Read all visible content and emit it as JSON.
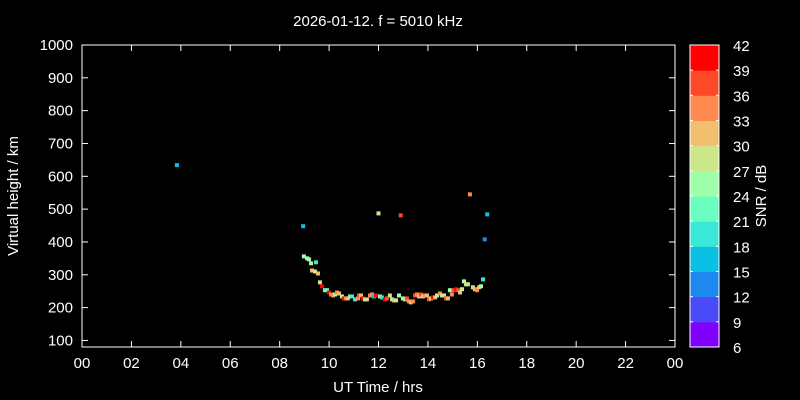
{
  "chart_data": {
    "type": "scatter",
    "title": "2026-01-12. f = 5010 kHz",
    "xlabel": "UT Time / hrs",
    "ylabel": "Virtual height / km",
    "xlim": [
      0,
      24
    ],
    "ylim": [
      80,
      1000
    ],
    "xticks": [
      "00",
      "02",
      "04",
      "06",
      "08",
      "10",
      "12",
      "14",
      "16",
      "18",
      "20",
      "22",
      "00"
    ],
    "yticks": [
      100,
      200,
      300,
      400,
      500,
      600,
      700,
      800,
      900,
      1000
    ],
    "colorbar": {
      "label": "SNR / dB",
      "ticks": [
        6,
        9,
        12,
        15,
        18,
        21,
        24,
        27,
        30,
        33,
        36,
        39,
        42
      ],
      "colors": [
        "#8000ff",
        "#4a4af8",
        "#1e88f0",
        "#0cc0e4",
        "#3ae8d8",
        "#6affc0",
        "#a0ffaa",
        "#cce68a",
        "#f0c070",
        "#ff8a50",
        "#ff4a2a",
        "#ff0000"
      ]
    },
    "point_fields": [
      "ut_hours",
      "height_km",
      "snr_db"
    ],
    "points": [
      [
        3.84,
        634,
        16
      ],
      [
        8.95,
        448,
        16
      ],
      [
        12.0,
        487,
        28
      ],
      [
        12.9,
        481,
        37
      ],
      [
        15.7,
        545,
        34
      ],
      [
        16.4,
        484,
        16
      ],
      [
        16.3,
        408,
        13
      ],
      [
        8.98,
        356,
        25
      ],
      [
        9.11,
        350,
        25
      ],
      [
        9.19,
        347,
        25
      ],
      [
        9.27,
        335,
        28
      ],
      [
        9.47,
        338,
        19
      ],
      [
        9.31,
        313,
        31
      ],
      [
        9.43,
        310,
        28
      ],
      [
        9.55,
        304,
        31
      ],
      [
        9.63,
        277,
        28
      ],
      [
        9.71,
        265,
        40
      ],
      [
        9.83,
        253,
        22
      ],
      [
        9.92,
        253,
        22
      ],
      [
        10.0,
        246,
        40
      ],
      [
        10.08,
        240,
        34
      ],
      [
        10.16,
        237,
        34
      ],
      [
        10.24,
        240,
        25
      ],
      [
        10.32,
        246,
        34
      ],
      [
        10.4,
        243,
        31
      ],
      [
        10.52,
        234,
        25
      ],
      [
        10.6,
        228,
        40
      ],
      [
        10.68,
        228,
        34
      ],
      [
        10.76,
        228,
        31
      ],
      [
        10.85,
        234,
        28
      ],
      [
        10.93,
        234,
        19
      ],
      [
        11.05,
        225,
        19
      ],
      [
        11.17,
        228,
        34
      ],
      [
        11.21,
        237,
        37
      ],
      [
        11.29,
        237,
        31
      ],
      [
        11.37,
        228,
        40
      ],
      [
        11.45,
        225,
        28
      ],
      [
        11.53,
        225,
        28
      ],
      [
        11.66,
        237,
        34
      ],
      [
        11.74,
        240,
        34
      ],
      [
        11.82,
        234,
        16
      ],
      [
        11.9,
        237,
        40
      ],
      [
        12.06,
        234,
        28
      ],
      [
        12.14,
        231,
        19
      ],
      [
        12.26,
        225,
        40
      ],
      [
        12.34,
        228,
        37
      ],
      [
        12.46,
        237,
        28
      ],
      [
        12.55,
        225,
        25
      ],
      [
        12.63,
        222,
        31
      ],
      [
        12.71,
        222,
        28
      ],
      [
        12.83,
        237,
        25
      ],
      [
        12.99,
        228,
        25
      ],
      [
        13.07,
        225,
        28
      ],
      [
        13.15,
        228,
        37
      ],
      [
        13.23,
        219,
        34
      ],
      [
        13.31,
        216,
        31
      ],
      [
        13.4,
        219,
        34
      ],
      [
        13.48,
        237,
        37
      ],
      [
        13.56,
        240,
        34
      ],
      [
        13.64,
        234,
        31
      ],
      [
        13.72,
        240,
        37
      ],
      [
        13.8,
        234,
        31
      ],
      [
        13.88,
        237,
        34
      ],
      [
        13.96,
        237,
        31
      ],
      [
        14.04,
        225,
        37
      ],
      [
        14.12,
        228,
        28
      ],
      [
        14.2,
        231,
        40
      ],
      [
        14.29,
        231,
        31
      ],
      [
        14.37,
        237,
        25
      ],
      [
        14.49,
        243,
        34
      ],
      [
        14.57,
        237,
        28
      ],
      [
        14.65,
        237,
        28
      ],
      [
        14.73,
        228,
        37
      ],
      [
        14.81,
        228,
        31
      ],
      [
        14.89,
        253,
        25
      ],
      [
        14.97,
        240,
        34
      ],
      [
        15.05,
        253,
        37
      ],
      [
        15.14,
        256,
        40
      ],
      [
        15.22,
        253,
        37
      ],
      [
        15.3,
        246,
        31
      ],
      [
        15.38,
        256,
        28
      ],
      [
        15.46,
        280,
        25
      ],
      [
        15.54,
        271,
        28
      ],
      [
        15.62,
        271,
        28
      ],
      [
        15.82,
        262,
        28
      ],
      [
        15.9,
        256,
        31
      ],
      [
        15.99,
        253,
        34
      ],
      [
        16.07,
        262,
        31
      ],
      [
        16.15,
        265,
        25
      ],
      [
        16.23,
        286,
        19
      ]
    ]
  }
}
